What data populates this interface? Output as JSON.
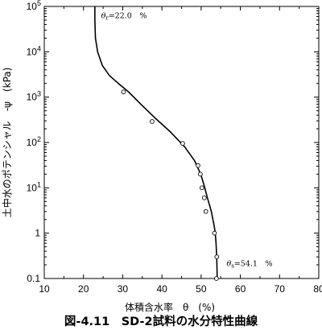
{
  "chart_data": {
    "type": "scatter",
    "title": "",
    "xlabel": "体積含水率　θ　(%)",
    "ylabel": "土中水のポテンシャル　-ψ　(kPa)",
    "xlim": [
      10,
      80
    ],
    "ylim": [
      0.1,
      100000
    ],
    "yscale": "log",
    "xticks": [
      10,
      20,
      30,
      40,
      50,
      60,
      70,
      80
    ],
    "xtick_labels": [
      "10",
      "20",
      "30",
      "40",
      "50",
      "60",
      "70",
      "80"
    ],
    "yticks": [
      0.1,
      1,
      10,
      100,
      1000,
      10000,
      100000
    ],
    "grid": false,
    "legend": "none",
    "series": [
      {
        "marker": "open-circle",
        "x": [
          30.2,
          37.5,
          45.3,
          49.2,
          49.8,
          50.2,
          50.8,
          51.2,
          53.4,
          54.0,
          53.9
        ],
        "y": [
          1300,
          290,
          95,
          31,
          20,
          10,
          6,
          3,
          1,
          0.3,
          0.1
        ]
      },
      {
        "style": "solid-line",
        "x": [
          22.9,
          22.9,
          23.05,
          23.6,
          24.8,
          26.6,
          28.9,
          31.5,
          34.6,
          38.2,
          42.2,
          45.8,
          48.3,
          49.9,
          50.8,
          51.6,
          52.2,
          52.6,
          53.0,
          53.3,
          53.6,
          53.8,
          53.9,
          54.0,
          54.05,
          54.1
        ],
        "y": [
          100000,
          50000,
          20000,
          10000,
          5000,
          3000,
          2000,
          1300,
          700,
          350,
          170,
          80,
          40,
          20,
          11,
          6,
          4,
          3,
          2,
          1.5,
          1,
          0.6,
          0.4,
          0.25,
          0.15,
          0.1
        ]
      }
    ],
    "annotations": [
      {
        "text": "θr=22.0　%",
        "x": 24.5,
        "y": 55000
      },
      {
        "text": "θs=54.1　%",
        "x": 56.5,
        "y": 0.19
      }
    ]
  },
  "caption": "図-4.11　SD-2試料の水分特性曲線",
  "colors": {
    "axis": "#000000",
    "curve": "#000000",
    "marker_stroke": "#000000",
    "marker_fill": "#ffffff"
  }
}
